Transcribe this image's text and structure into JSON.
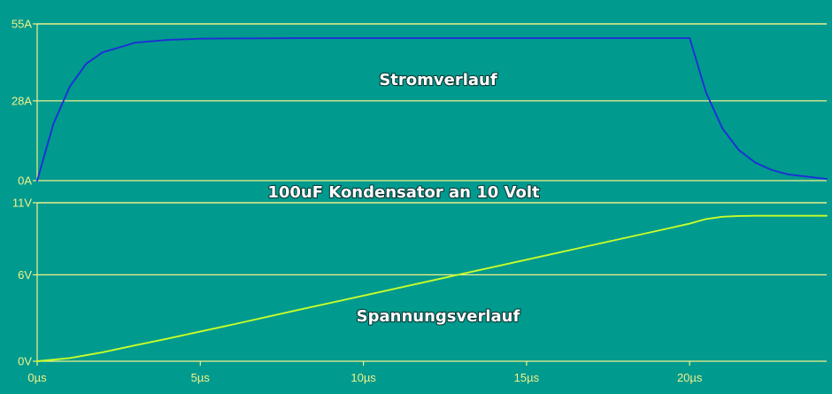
{
  "colors": {
    "background": "#009a8e",
    "grid": "#f2f28a",
    "tick_text": "#f2f28a",
    "current_trace": "#1f2fd6",
    "voltage_trace": "#c8ff2a",
    "label_text": "#ffffff"
  },
  "chart_data": [
    {
      "type": "line",
      "title": "100uF Kondensator an 10 Volt",
      "annotation": "Stromverlauf",
      "x_unit": "µs",
      "xlim": [
        0,
        24.2
      ],
      "ylim": [
        0,
        55
      ],
      "y_ticks": [
        0,
        28,
        55
      ],
      "y_tick_labels": [
        "0A",
        "28A",
        "55A"
      ],
      "grid": true,
      "series": [
        {
          "x": [
            0,
            0.5,
            1,
            1.5,
            2,
            3,
            4,
            5,
            6,
            8,
            10,
            15,
            19,
            20,
            20.5,
            21,
            21.5,
            22,
            22.5,
            23,
            24.2
          ],
          "y": [
            0,
            20,
            33,
            41,
            45,
            48.4,
            49.4,
            49.8,
            49.9,
            50,
            50,
            50,
            50,
            50,
            31,
            18.4,
            10.8,
            6.4,
            3.8,
            2.2,
            0.6
          ]
        }
      ]
    },
    {
      "type": "line",
      "annotation": "Spannungsverlauf",
      "x_unit": "µs",
      "xlim": [
        0,
        24.2
      ],
      "ylim": [
        0,
        11
      ],
      "y_ticks": [
        0,
        6,
        11
      ],
      "y_tick_labels": [
        "0V",
        "6V",
        "11V"
      ],
      "x_ticks": [
        0,
        5,
        10,
        15,
        20
      ],
      "x_tick_labels": [
        "0µs",
        "5µs",
        "10µs",
        "15µs",
        "20µs"
      ],
      "grid": true,
      "series": [
        {
          "x": [
            0,
            1,
            2,
            3,
            4,
            5,
            6,
            8,
            10,
            12,
            14,
            16,
            18,
            20,
            20.5,
            21,
            21.5,
            22,
            23,
            24.2
          ],
          "y": [
            0,
            0.22,
            0.62,
            1.1,
            1.57,
            2.06,
            2.55,
            3.56,
            4.55,
            5.55,
            6.55,
            7.55,
            8.55,
            9.55,
            9.87,
            10.03,
            10.08,
            10.1,
            10.1,
            10.1
          ]
        }
      ]
    }
  ]
}
